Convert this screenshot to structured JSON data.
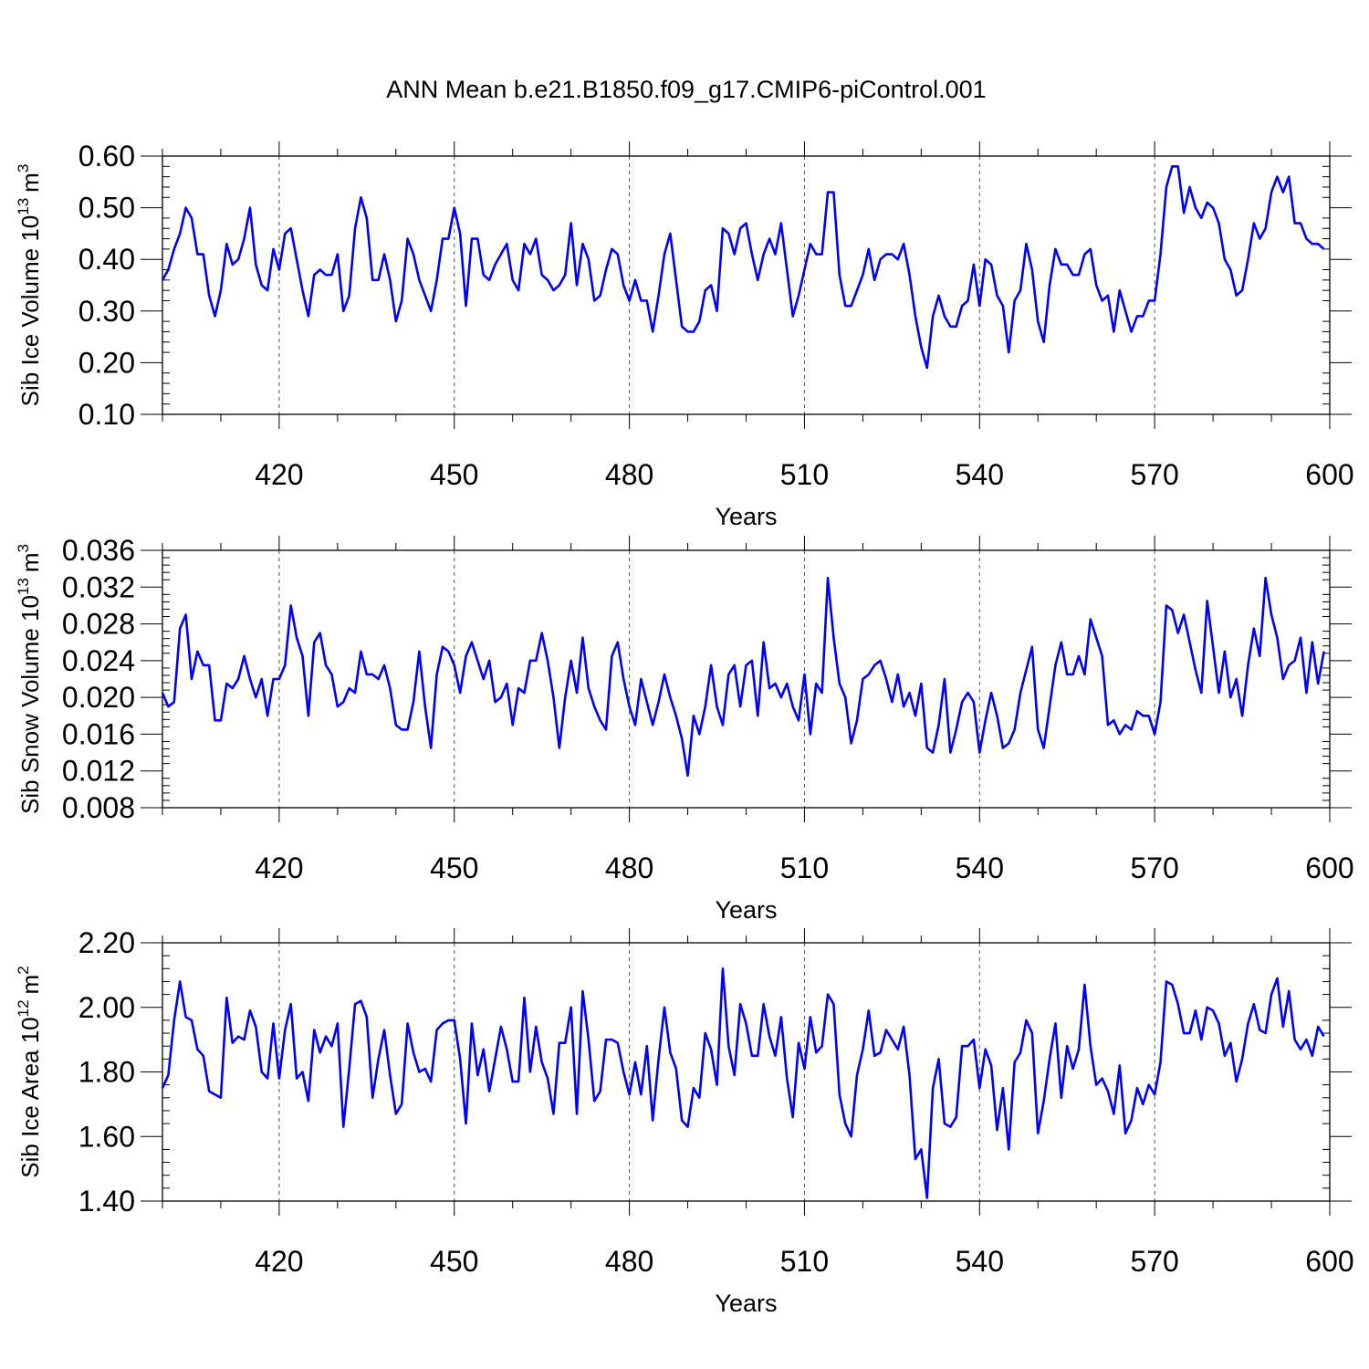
{
  "title": "ANN Mean b.e21.B1850.f09_g17.CMIP6-piControl.001",
  "colors": {
    "series": "#0000ff",
    "axis": "#000000",
    "grid": "#555555"
  },
  "chart_data": [
    {
      "type": "line",
      "ylabel_main": "Sib Ice Volume 10",
      "ylabel_exp": "13",
      "ylabel_unit": "m",
      "ylabel_unit_exp": "3",
      "xlabel": "Years",
      "xlim": [
        400,
        600
      ],
      "ylim": [
        0.1,
        0.6
      ],
      "yticks": [
        0.1,
        0.2,
        0.3,
        0.4,
        0.5,
        0.6
      ],
      "ytick_labels": [
        "0.10",
        "0.20",
        "0.30",
        "0.40",
        "0.50",
        "0.60"
      ],
      "xticks": [
        420,
        450,
        480,
        510,
        540,
        570,
        600
      ],
      "xtick_labels": [
        "420",
        "450",
        "480",
        "510",
        "540",
        "570",
        "600"
      ],
      "grid": "vertical dashed at major x ticks",
      "x_start": 400,
      "x_step": 1,
      "values": [
        0.36,
        0.38,
        0.42,
        0.45,
        0.5,
        0.48,
        0.41,
        0.41,
        0.33,
        0.29,
        0.34,
        0.43,
        0.39,
        0.4,
        0.44,
        0.5,
        0.39,
        0.35,
        0.34,
        0.42,
        0.38,
        0.45,
        0.46,
        0.4,
        0.34,
        0.29,
        0.37,
        0.38,
        0.37,
        0.37,
        0.41,
        0.3,
        0.33,
        0.46,
        0.52,
        0.48,
        0.36,
        0.36,
        0.41,
        0.36,
        0.28,
        0.32,
        0.44,
        0.41,
        0.36,
        0.33,
        0.3,
        0.36,
        0.44,
        0.44,
        0.5,
        0.45,
        0.31,
        0.44,
        0.44,
        0.37,
        0.36,
        0.39,
        0.41,
        0.43,
        0.36,
        0.34,
        0.43,
        0.41,
        0.44,
        0.37,
        0.36,
        0.34,
        0.35,
        0.37,
        0.47,
        0.35,
        0.43,
        0.4,
        0.32,
        0.33,
        0.38,
        0.42,
        0.41,
        0.35,
        0.32,
        0.36,
        0.32,
        0.32,
        0.26,
        0.33,
        0.41,
        0.45,
        0.36,
        0.27,
        0.26,
        0.26,
        0.28,
        0.34,
        0.35,
        0.3,
        0.46,
        0.45,
        0.41,
        0.46,
        0.47,
        0.41,
        0.36,
        0.41,
        0.44,
        0.41,
        0.47,
        0.38,
        0.29,
        0.33,
        0.38,
        0.43,
        0.41,
        0.41,
        0.53,
        0.53,
        0.37,
        0.31,
        0.31,
        0.34,
        0.37,
        0.42,
        0.36,
        0.4,
        0.41,
        0.41,
        0.4,
        0.43,
        0.37,
        0.29,
        0.23,
        0.19,
        0.29,
        0.33,
        0.29,
        0.27,
        0.27,
        0.31,
        0.32,
        0.39,
        0.31,
        0.4,
        0.39,
        0.33,
        0.31,
        0.22,
        0.32,
        0.34,
        0.43,
        0.38,
        0.28,
        0.24,
        0.35,
        0.42,
        0.39,
        0.39,
        0.37,
        0.37,
        0.41,
        0.42,
        0.35,
        0.32,
        0.33,
        0.26,
        0.34,
        0.3,
        0.26,
        0.29,
        0.29,
        0.32,
        0.32,
        0.41,
        0.54,
        0.58,
        0.58,
        0.49,
        0.54,
        0.5,
        0.48,
        0.51,
        0.5,
        0.47,
        0.4,
        0.38,
        0.33,
        0.34,
        0.4,
        0.47,
        0.44,
        0.46,
        0.53,
        0.56,
        0.53,
        0.56,
        0.47,
        0.47,
        0.44,
        0.43,
        0.43,
        0.42
      ]
    },
    {
      "type": "line",
      "ylabel_main": "Sib Snow Volume 10",
      "ylabel_exp": "13",
      "ylabel_unit": "m",
      "ylabel_unit_exp": "3",
      "xlabel": "Years",
      "xlim": [
        400,
        600
      ],
      "ylim": [
        0.008,
        0.036
      ],
      "yticks": [
        0.008,
        0.012,
        0.016,
        0.02,
        0.024,
        0.028,
        0.032,
        0.036
      ],
      "ytick_labels": [
        "0.008",
        "0.012",
        "0.016",
        "0.020",
        "0.024",
        "0.028",
        "0.032",
        "0.036"
      ],
      "xticks": [
        420,
        450,
        480,
        510,
        540,
        570,
        600
      ],
      "xtick_labels": [
        "420",
        "450",
        "480",
        "510",
        "540",
        "570",
        "600"
      ],
      "grid": "vertical dashed at major x ticks",
      "x_start": 400,
      "x_step": 1,
      "values": [
        0.0205,
        0.019,
        0.0195,
        0.0275,
        0.029,
        0.022,
        0.025,
        0.0235,
        0.0235,
        0.0175,
        0.0175,
        0.0215,
        0.021,
        0.022,
        0.0245,
        0.022,
        0.02,
        0.022,
        0.018,
        0.022,
        0.022,
        0.0235,
        0.03,
        0.0265,
        0.0245,
        0.018,
        0.026,
        0.027,
        0.0235,
        0.0225,
        0.019,
        0.0195,
        0.021,
        0.0205,
        0.025,
        0.0225,
        0.0225,
        0.022,
        0.0235,
        0.021,
        0.017,
        0.0165,
        0.0165,
        0.0195,
        0.025,
        0.019,
        0.0145,
        0.0225,
        0.0255,
        0.025,
        0.0235,
        0.0205,
        0.0245,
        0.026,
        0.024,
        0.022,
        0.024,
        0.0195,
        0.02,
        0.0215,
        0.017,
        0.021,
        0.0205,
        0.024,
        0.024,
        0.027,
        0.024,
        0.02,
        0.0145,
        0.02,
        0.024,
        0.0205,
        0.0265,
        0.021,
        0.019,
        0.0175,
        0.0165,
        0.0245,
        0.026,
        0.022,
        0.019,
        0.017,
        0.022,
        0.0195,
        0.017,
        0.0195,
        0.0225,
        0.02,
        0.018,
        0.0155,
        0.0115,
        0.018,
        0.016,
        0.019,
        0.0235,
        0.019,
        0.017,
        0.0225,
        0.0235,
        0.019,
        0.0235,
        0.024,
        0.018,
        0.026,
        0.021,
        0.0215,
        0.02,
        0.0215,
        0.019,
        0.0175,
        0.0225,
        0.016,
        0.0215,
        0.0205,
        0.033,
        0.0265,
        0.0215,
        0.02,
        0.015,
        0.0175,
        0.022,
        0.0225,
        0.0235,
        0.024,
        0.022,
        0.0195,
        0.0225,
        0.019,
        0.0205,
        0.018,
        0.0215,
        0.0145,
        0.014,
        0.017,
        0.022,
        0.014,
        0.0165,
        0.0195,
        0.0205,
        0.0195,
        0.014,
        0.0175,
        0.0205,
        0.018,
        0.0145,
        0.015,
        0.0165,
        0.0205,
        0.023,
        0.0255,
        0.0165,
        0.0145,
        0.019,
        0.0235,
        0.026,
        0.0225,
        0.0225,
        0.0245,
        0.0225,
        0.0285,
        0.0265,
        0.0245,
        0.017,
        0.0175,
        0.016,
        0.017,
        0.0165,
        0.0185,
        0.018,
        0.018,
        0.016,
        0.0195,
        0.03,
        0.0295,
        0.027,
        0.029,
        0.026,
        0.023,
        0.0205,
        0.0305,
        0.0255,
        0.0205,
        0.025,
        0.02,
        0.022,
        0.018,
        0.0235,
        0.0275,
        0.0245,
        0.033,
        0.029,
        0.0265,
        0.022,
        0.0235,
        0.024,
        0.0265,
        0.0205,
        0.026,
        0.0215,
        0.025
      ]
    },
    {
      "type": "line",
      "ylabel_main": "Sib Ice Area 10",
      "ylabel_exp": "12",
      "ylabel_unit": "m",
      "ylabel_unit_exp": "2",
      "xlabel": "Years",
      "xlim": [
        400,
        600
      ],
      "ylim": [
        1.4,
        2.2
      ],
      "yticks": [
        1.4,
        1.6,
        1.8,
        2.0,
        2.2
      ],
      "ytick_labels": [
        "1.40",
        "1.60",
        "1.80",
        "2.00",
        "2.20"
      ],
      "xticks": [
        420,
        450,
        480,
        510,
        540,
        570,
        600
      ],
      "xtick_labels": [
        "420",
        "450",
        "480",
        "510",
        "540",
        "570",
        "600"
      ],
      "grid": "vertical dashed at major x ticks",
      "x_start": 400,
      "x_step": 1,
      "values": [
        1.75,
        1.79,
        1.96,
        2.08,
        1.97,
        1.96,
        1.87,
        1.85,
        1.74,
        1.73,
        1.72,
        2.03,
        1.89,
        1.91,
        1.9,
        1.99,
        1.94,
        1.8,
        1.78,
        1.95,
        1.78,
        1.93,
        2.01,
        1.78,
        1.8,
        1.71,
        1.93,
        1.86,
        1.91,
        1.88,
        1.95,
        1.63,
        1.81,
        2.01,
        2.02,
        1.97,
        1.72,
        1.84,
        1.93,
        1.79,
        1.67,
        1.7,
        1.95,
        1.86,
        1.8,
        1.81,
        1.77,
        1.93,
        1.95,
        1.96,
        1.96,
        1.84,
        1.64,
        1.95,
        1.79,
        1.87,
        1.74,
        1.84,
        1.94,
        1.87,
        1.77,
        1.77,
        2.03,
        1.8,
        1.94,
        1.83,
        1.78,
        1.67,
        1.89,
        1.89,
        2.0,
        1.67,
        2.05,
        1.9,
        1.71,
        1.74,
        1.9,
        1.9,
        1.89,
        1.8,
        1.73,
        1.83,
        1.73,
        1.88,
        1.65,
        1.84,
        2.0,
        1.86,
        1.81,
        1.65,
        1.63,
        1.75,
        1.72,
        1.92,
        1.87,
        1.76,
        2.12,
        1.88,
        1.79,
        2.01,
        1.95,
        1.85,
        1.85,
        2.01,
        1.91,
        1.85,
        1.97,
        1.78,
        1.66,
        1.89,
        1.81,
        1.97,
        1.86,
        1.88,
        2.04,
        2.01,
        1.73,
        1.64,
        1.6,
        1.79,
        1.87,
        1.99,
        1.85,
        1.86,
        1.93,
        1.9,
        1.87,
        1.94,
        1.79,
        1.53,
        1.56,
        1.41,
        1.75,
        1.84,
        1.64,
        1.63,
        1.66,
        1.88,
        1.88,
        1.9,
        1.75,
        1.87,
        1.82,
        1.62,
        1.75,
        1.56,
        1.83,
        1.86,
        1.96,
        1.92,
        1.61,
        1.71,
        1.84,
        1.95,
        1.72,
        1.88,
        1.81,
        1.87,
        2.07,
        1.88,
        1.76,
        1.78,
        1.74,
        1.67,
        1.82,
        1.61,
        1.65,
        1.75,
        1.7,
        1.76,
        1.73,
        1.83,
        2.08,
        2.07,
        2.01,
        1.92,
        1.92,
        1.99,
        1.9,
        2.0,
        1.99,
        1.95,
        1.85,
        1.89,
        1.77,
        1.84,
        1.95,
        2.01,
        1.93,
        1.92,
        2.04,
        2.09,
        1.94,
        2.05,
        1.9,
        1.87,
        1.9,
        1.85,
        1.94,
        1.91
      ]
    }
  ]
}
